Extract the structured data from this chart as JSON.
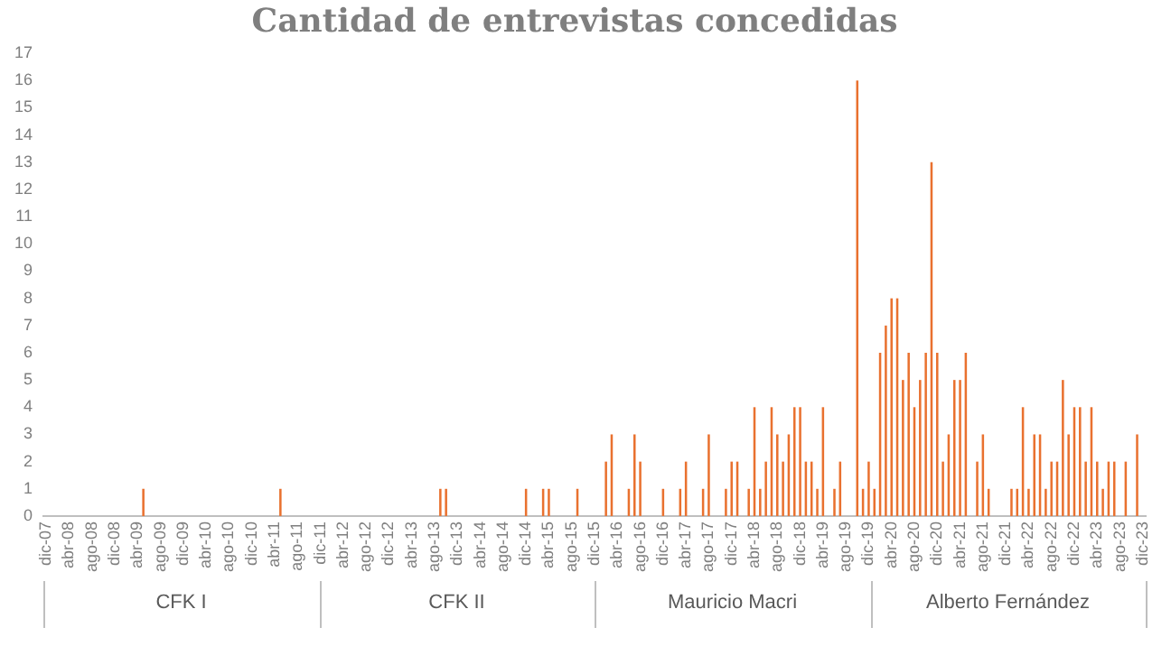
{
  "chart_data": {
    "type": "bar",
    "title": "Cantidad de entrevistas concedidas",
    "categories": [
      "dic-07",
      null,
      null,
      null,
      "abr-08",
      null,
      null,
      null,
      "ago-08",
      null,
      null,
      null,
      "dic-08",
      null,
      null,
      null,
      "abr-09",
      null,
      null,
      null,
      "ago-09",
      null,
      null,
      null,
      "dic-09",
      null,
      null,
      null,
      "abr-10",
      null,
      null,
      null,
      "ago-10",
      null,
      null,
      null,
      "dic-10",
      null,
      null,
      null,
      "abr-11",
      null,
      null,
      null,
      "ago-11",
      null,
      null,
      null,
      "dic-11",
      null,
      null,
      null,
      "abr-12",
      null,
      null,
      null,
      "ago-12",
      null,
      null,
      null,
      "dic-12",
      null,
      null,
      null,
      "abr-13",
      null,
      null,
      null,
      "ago-13",
      null,
      null,
      null,
      "dic-13",
      null,
      null,
      null,
      "abr-14",
      null,
      null,
      null,
      "ago-14",
      null,
      null,
      null,
      "dic-14",
      null,
      null,
      null,
      "abr-15",
      null,
      null,
      null,
      "ago-15",
      null,
      null,
      null,
      "dic-15",
      null,
      null,
      null,
      "abr-16",
      null,
      null,
      null,
      "ago-16",
      null,
      null,
      null,
      "dic-16",
      null,
      null,
      null,
      "abr-17",
      null,
      null,
      null,
      "ago-17",
      null,
      null,
      null,
      "dic-17",
      null,
      null,
      null,
      "abr-18",
      null,
      null,
      null,
      "ago-18",
      null,
      null,
      null,
      "dic-18",
      null,
      null,
      null,
      "abr-19",
      null,
      null,
      null,
      "ago-19",
      null,
      null,
      null,
      "dic-19",
      null,
      null,
      null,
      "abr-20",
      null,
      null,
      null,
      "ago-20",
      null,
      null,
      null,
      "dic-20",
      null,
      null,
      null,
      "abr-21",
      null,
      null,
      null,
      "ago-21",
      null,
      null,
      null,
      "dic-21",
      null,
      null,
      null,
      "abr-22",
      null,
      null,
      null,
      "ago-22",
      null,
      null,
      null,
      "dic-22",
      null,
      null,
      null,
      "abr-23",
      null,
      null,
      null,
      "ago-23",
      null,
      null,
      null,
      "dic-23"
    ],
    "values": [
      0,
      0,
      0,
      0,
      0,
      0,
      0,
      0,
      0,
      0,
      0,
      0,
      0,
      0,
      0,
      0,
      0,
      1,
      0,
      0,
      0,
      0,
      0,
      0,
      0,
      0,
      0,
      0,
      0,
      0,
      0,
      0,
      0,
      0,
      0,
      0,
      0,
      0,
      0,
      0,
      0,
      1,
      0,
      0,
      0,
      0,
      0,
      0,
      0,
      0,
      0,
      0,
      0,
      0,
      0,
      0,
      0,
      0,
      0,
      0,
      0,
      0,
      0,
      0,
      0,
      0,
      0,
      0,
      0,
      1,
      1,
      0,
      0,
      0,
      0,
      0,
      0,
      0,
      0,
      0,
      0,
      0,
      0,
      0,
      1,
      0,
      0,
      1,
      1,
      0,
      0,
      0,
      0,
      1,
      0,
      0,
      0,
      0,
      2,
      3,
      0,
      0,
      1,
      3,
      2,
      0,
      0,
      0,
      1,
      0,
      0,
      1,
      2,
      0,
      0,
      1,
      3,
      0,
      0,
      1,
      2,
      2,
      0,
      1,
      4,
      1,
      2,
      4,
      3,
      2,
      3,
      4,
      4,
      2,
      2,
      1,
      4,
      0,
      1,
      2,
      0,
      0,
      16,
      1,
      2,
      1,
      6,
      7,
      8,
      8,
      5,
      6,
      4,
      5,
      6,
      13,
      6,
      2,
      3,
      5,
      5,
      6,
      0,
      2,
      3,
      1,
      0,
      0,
      0,
      1,
      1,
      4,
      1,
      3,
      3,
      1,
      2,
      2,
      5,
      3,
      4,
      4,
      2,
      4,
      2,
      1,
      2,
      2,
      0,
      2,
      0,
      3,
      0
    ],
    "color": "#e9712f",
    "ylim": [
      0,
      17
    ],
    "yticks": [
      0,
      1,
      2,
      3,
      4,
      5,
      6,
      7,
      8,
      9,
      10,
      11,
      12,
      13,
      14,
      15,
      16,
      17
    ],
    "grid": false,
    "legend": false,
    "annotations": [
      "CFK I",
      "CFK II",
      "Mauricio Macri",
      "Alberto Fernández"
    ]
  }
}
